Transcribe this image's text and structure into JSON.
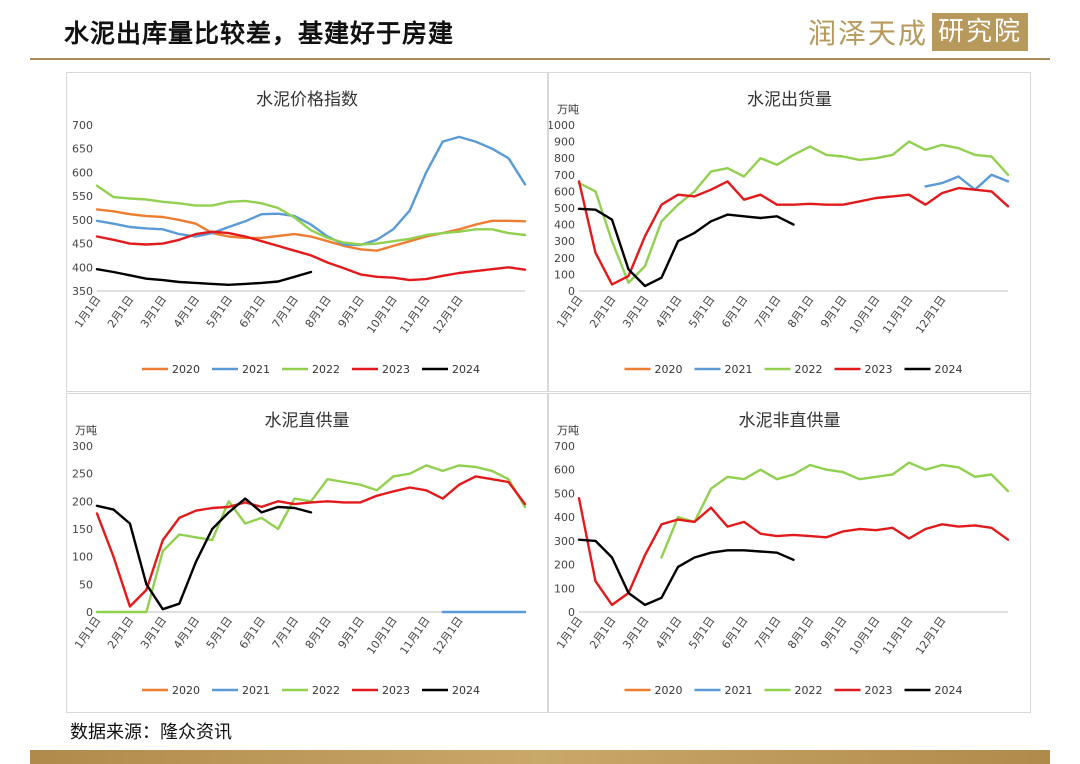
{
  "header": {
    "title": "水泥出库量比较差，基建好于房建",
    "logo_text": "润泽天成",
    "logo_box": "研究院"
  },
  "source": "数据来源：隆众资讯",
  "colors": {
    "2020": "#ED7D31",
    "2021": "#5B9BD5",
    "2022": "#92D050",
    "2023": "#E31A1C",
    "2024": "#000000"
  },
  "chart_data": [
    {
      "type": "line",
      "title": "水泥价格指数",
      "unit": "",
      "ylim": [
        350,
        700
      ],
      "ystep": 50,
      "xticks": [
        "1月1日",
        "2月1日",
        "3月1日",
        "4月1日",
        "5月1日",
        "6月1日",
        "7月1日",
        "8月1日",
        "9月1日",
        "10月1日",
        "11月1日",
        "12月1日"
      ],
      "series": [
        {
          "name": "2020",
          "x": [
            0,
            0.5,
            1,
            1.5,
            2,
            2.5,
            3,
            3.5,
            4,
            4.5,
            5,
            5.5,
            6,
            6.5,
            7,
            7.5,
            8,
            8.5,
            9,
            9.5,
            10,
            10.5,
            11,
            11.5,
            12,
            12.5,
            13
          ],
          "values": [
            522,
            518,
            512,
            508,
            506,
            500,
            492,
            472,
            465,
            462,
            462,
            466,
            470,
            465,
            455,
            445,
            438,
            435,
            445,
            455,
            465,
            472,
            480,
            490,
            498,
            498,
            497
          ]
        },
        {
          "name": "2021",
          "x": [
            0,
            0.5,
            1,
            1.5,
            2,
            2.5,
            3,
            3.5,
            4,
            4.5,
            5,
            5.5,
            6,
            6.5,
            7,
            7.5,
            8,
            8.5,
            9,
            9.5,
            10,
            10.5,
            11,
            11.5,
            12,
            12.5,
            13
          ],
          "values": [
            498,
            492,
            485,
            482,
            480,
            470,
            465,
            472,
            485,
            497,
            512,
            513,
            508,
            490,
            465,
            448,
            447,
            458,
            480,
            520,
            600,
            665,
            675,
            665,
            650,
            630,
            575
          ]
        },
        {
          "name": "2022",
          "x": [
            0,
            0.5,
            1,
            1.5,
            2,
            2.5,
            3,
            3.5,
            4,
            4.5,
            5,
            5.5,
            6,
            6.5,
            7,
            7.5,
            8,
            8.5,
            9,
            9.5,
            10,
            10.5,
            11,
            11.5,
            12,
            12.5,
            13
          ],
          "values": [
            572,
            548,
            545,
            543,
            538,
            535,
            530,
            530,
            538,
            540,
            535,
            525,
            505,
            478,
            462,
            452,
            448,
            450,
            455,
            460,
            468,
            472,
            475,
            480,
            480,
            472,
            468
          ]
        },
        {
          "name": "2023",
          "x": [
            0,
            0.5,
            1,
            1.5,
            2,
            2.5,
            3,
            3.5,
            4,
            4.5,
            5,
            5.5,
            6,
            6.5,
            7,
            7.5,
            8,
            8.5,
            9,
            9.5,
            10,
            10.5,
            11,
            11.5,
            12,
            12.5,
            13
          ],
          "values": [
            465,
            458,
            450,
            448,
            450,
            458,
            470,
            475,
            472,
            465,
            455,
            445,
            435,
            425,
            410,
            398,
            385,
            380,
            378,
            373,
            375,
            382,
            388,
            392,
            396,
            400,
            395
          ]
        },
        {
          "name": "2024",
          "x": [
            0,
            0.5,
            1,
            1.5,
            2,
            2.5,
            3,
            3.5,
            4,
            4.5,
            5,
            5.5,
            6,
            6.5
          ],
          "values": [
            396,
            390,
            383,
            376,
            373,
            369,
            367,
            365,
            363,
            365,
            367,
            370,
            380,
            390
          ]
        }
      ]
    },
    {
      "type": "line",
      "title": "水泥出货量",
      "unit": "万吨",
      "ylim": [
        0,
        1000
      ],
      "ystep": 100,
      "xticks": [
        "1月1日",
        "2月1日",
        "3月1日",
        "4月1日",
        "5月1日",
        "6月1日",
        "7月1日",
        "8月1日",
        "9月1日",
        "10月1日",
        "11月1日",
        "12月1日"
      ],
      "series": [
        {
          "name": "2020",
          "x": [],
          "values": []
        },
        {
          "name": "2021",
          "x": [
            10.5,
            11,
            11.5,
            12,
            12.5,
            13
          ],
          "values": [
            630,
            650,
            690,
            610,
            700,
            660
          ]
        },
        {
          "name": "2022",
          "x": [
            0,
            0.5,
            1,
            1.5,
            2,
            2.5,
            3,
            3.5,
            4,
            4.5,
            5,
            5.5,
            6,
            6.5,
            7,
            7.5,
            8,
            8.5,
            9,
            9.5,
            10,
            10.5,
            11,
            11.5,
            12,
            12.5,
            13
          ],
          "values": [
            650,
            600,
            300,
            50,
            150,
            420,
            520,
            600,
            720,
            740,
            690,
            800,
            760,
            820,
            870,
            820,
            810,
            790,
            800,
            820,
            900,
            850,
            880,
            860,
            820,
            810,
            700
          ]
        },
        {
          "name": "2023",
          "x": [
            0,
            0.5,
            1,
            1.5,
            2,
            2.5,
            3,
            3.5,
            4,
            4.5,
            5,
            5.5,
            6,
            6.5,
            7,
            7.5,
            8,
            8.5,
            9,
            9.5,
            10,
            10.5,
            11,
            11.5,
            12,
            12.5,
            13
          ],
          "values": [
            660,
            230,
            40,
            90,
            330,
            520,
            580,
            570,
            610,
            660,
            550,
            580,
            520,
            520,
            525,
            520,
            520,
            540,
            560,
            570,
            580,
            520,
            590,
            620,
            610,
            600,
            510
          ]
        },
        {
          "name": "2024",
          "x": [
            0,
            0.5,
            1,
            1.5,
            2,
            2.5,
            3,
            3.5,
            4,
            4.5,
            5,
            5.5,
            6,
            6.5
          ],
          "values": [
            495,
            490,
            430,
            130,
            30,
            80,
            300,
            350,
            420,
            460,
            450,
            440,
            450,
            400
          ]
        }
      ]
    },
    {
      "type": "line",
      "title": "水泥直供量",
      "unit": "万吨",
      "ylim": [
        0,
        300
      ],
      "ystep": 50,
      "xticks": [
        "1月1日",
        "2月1日",
        "3月1日",
        "4月1日",
        "5月1日",
        "6月1日",
        "7月1日",
        "8月1日",
        "9月1日",
        "10月1日",
        "11月1日",
        "12月1日"
      ],
      "series": [
        {
          "name": "2020",
          "x": [],
          "values": []
        },
        {
          "name": "2021",
          "x": [
            10.5,
            11,
            11.5,
            12,
            12.5,
            13
          ],
          "values": [
            0,
            0,
            0,
            0,
            0,
            0
          ]
        },
        {
          "name": "2022",
          "x": [
            0,
            0.5,
            1,
            1.5,
            2,
            2.5,
            3,
            3.5,
            4,
            4.5,
            5,
            5.5,
            6,
            6.5,
            7,
            7.5,
            8,
            8.5,
            9,
            9.5,
            10,
            10.5,
            11,
            11.5,
            12,
            12.5,
            13
          ],
          "values": [
            0,
            0,
            0,
            0,
            110,
            140,
            135,
            130,
            200,
            160,
            170,
            150,
            205,
            200,
            240,
            235,
            230,
            220,
            245,
            250,
            265,
            255,
            265,
            262,
            255,
            240,
            190
          ]
        },
        {
          "name": "2023",
          "x": [
            0,
            0.5,
            1,
            1.5,
            2,
            2.5,
            3,
            3.5,
            4,
            4.5,
            5,
            5.5,
            6,
            6.5,
            7,
            7.5,
            8,
            8.5,
            9,
            9.5,
            10,
            10.5,
            11,
            11.5,
            12,
            12.5,
            13
          ],
          "values": [
            178,
            100,
            10,
            40,
            130,
            170,
            183,
            188,
            190,
            198,
            190,
            200,
            195,
            198,
            200,
            198,
            198,
            210,
            218,
            225,
            220,
            205,
            230,
            245,
            240,
            235,
            195
          ]
        },
        {
          "name": "2024",
          "x": [
            0,
            0.5,
            1,
            1.5,
            2,
            2.5,
            3,
            3.5,
            4,
            4.5,
            5,
            5.5,
            6,
            6.5
          ],
          "values": [
            192,
            185,
            160,
            50,
            5,
            15,
            90,
            150,
            180,
            205,
            180,
            190,
            188,
            180
          ]
        }
      ]
    },
    {
      "type": "line",
      "title": "水泥非直供量",
      "unit": "万吨",
      "ylim": [
        0,
        700
      ],
      "ystep": 100,
      "xticks": [
        "1月1日",
        "2月1日",
        "3月1日",
        "4月1日",
        "5月1日",
        "6月1日",
        "7月1日",
        "8月1日",
        "9月1日",
        "10月1日",
        "11月1日",
        "12月1日"
      ],
      "series": [
        {
          "name": "2020",
          "x": [],
          "values": []
        },
        {
          "name": "2021",
          "x": [],
          "values": []
        },
        {
          "name": "2022",
          "x": [
            2.5,
            3,
            3.5,
            4,
            4.5,
            5,
            5.5,
            6,
            6.5,
            7,
            7.5,
            8,
            8.5,
            9,
            9.5,
            10,
            10.5,
            11,
            11.5,
            12,
            12.5,
            13
          ],
          "values": [
            230,
            400,
            380,
            520,
            570,
            560,
            600,
            560,
            580,
            620,
            600,
            590,
            560,
            570,
            580,
            630,
            600,
            620,
            610,
            570,
            580,
            510
          ]
        },
        {
          "name": "2023",
          "x": [
            0,
            0.5,
            1,
            1.5,
            2,
            2.5,
            3,
            3.5,
            4,
            4.5,
            5,
            5.5,
            6,
            6.5,
            7,
            7.5,
            8,
            8.5,
            9,
            9.5,
            10,
            10.5,
            11,
            11.5,
            12,
            12.5,
            13
          ],
          "values": [
            480,
            130,
            30,
            80,
            240,
            370,
            390,
            380,
            440,
            360,
            380,
            330,
            320,
            325,
            320,
            315,
            340,
            350,
            345,
            355,
            310,
            350,
            370,
            360,
            365,
            355,
            305
          ]
        },
        {
          "name": "2024",
          "x": [
            0,
            0.5,
            1,
            1.5,
            2,
            2.5,
            3,
            3.5,
            4,
            4.5,
            5,
            5.5,
            6,
            6.5
          ],
          "values": [
            305,
            300,
            230,
            80,
            30,
            60,
            190,
            230,
            250,
            260,
            260,
            255,
            250,
            220
          ]
        }
      ]
    }
  ]
}
